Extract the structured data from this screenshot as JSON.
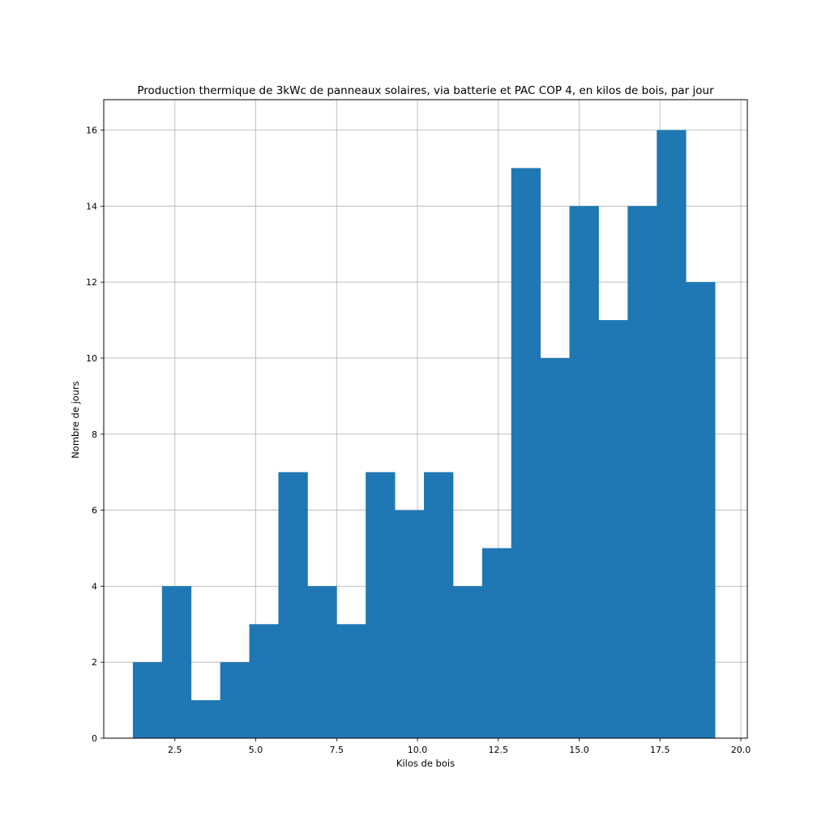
{
  "chart_data": {
    "type": "bar",
    "title": "Production thermique de 3kWc de panneaux solaires, via batterie et PAC COP 4, en kilos de bois, par jour",
    "xlabel": "Kilos de bois",
    "ylabel": "Nombre de jours",
    "xlim": [
      0.3,
      20.2
    ],
    "ylim": [
      0,
      16.8
    ],
    "x_ticks": [
      2.5,
      5.0,
      7.5,
      10.0,
      12.5,
      15.0,
      17.5,
      20.0
    ],
    "x_tick_labels": [
      "2.5",
      "5.0",
      "7.5",
      "10.0",
      "12.5",
      "15.0",
      "17.5",
      "20.0"
    ],
    "y_ticks": [
      0,
      2,
      4,
      6,
      8,
      10,
      12,
      14,
      16
    ],
    "y_tick_labels": [
      "0",
      "2",
      "4",
      "6",
      "8",
      "10",
      "12",
      "14",
      "16"
    ],
    "grid": true,
    "bar_color": "#1f77b4",
    "bin_edges": [
      1.2,
      2.1,
      3.0,
      3.9,
      4.8,
      5.7,
      6.6,
      7.5,
      8.4,
      9.3,
      10.2,
      11.1,
      12.0,
      12.9,
      13.8,
      14.7,
      15.6,
      16.5,
      17.4,
      18.3,
      19.2
    ],
    "values": [
      2,
      4,
      1,
      2,
      3,
      7,
      4,
      3,
      7,
      6,
      7,
      4,
      5,
      15,
      10,
      14,
      11,
      14,
      16,
      12
    ]
  }
}
